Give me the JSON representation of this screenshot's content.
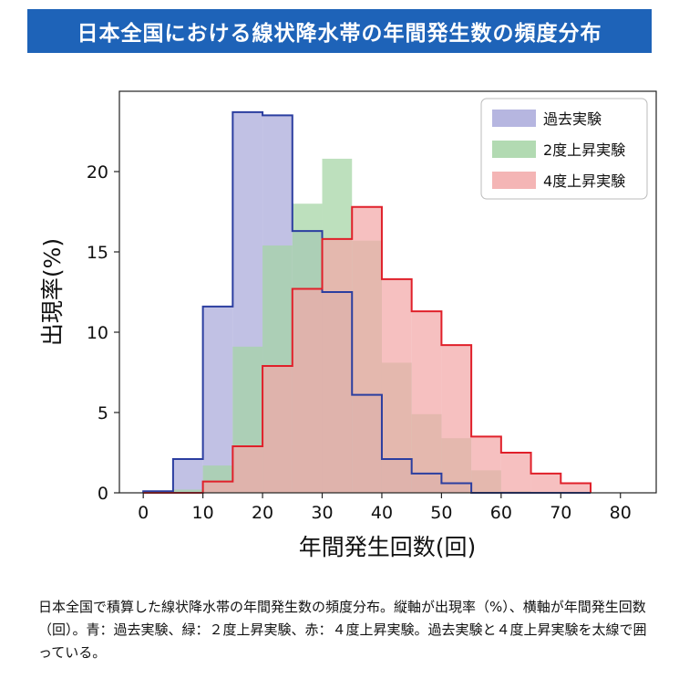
{
  "header": {
    "title": "日本全国における線状降水帯の年間発生数の頻度分布"
  },
  "caption": {
    "text": "日本全国で積算した線状降水帯の年間発生数の頻度分布。縦軸が出現率（%）、横軸が年間発生回数（回）。青：過去実験、緑：２度上昇実験、赤：４度上昇実験。過去実験と４度上昇実験を太線で囲っている。"
  },
  "chart_data": {
    "type": "histogram",
    "xlabel": "年間発生回数(回)",
    "ylabel": "出現率(%)",
    "xlim": [
      -4,
      86
    ],
    "ylim": [
      0,
      25
    ],
    "x_ticks": [
      "0",
      "10",
      "20",
      "30",
      "40",
      "50",
      "60",
      "70",
      "80"
    ],
    "y_ticks": [
      "0",
      "5",
      "10",
      "15",
      "20"
    ],
    "bin_edges": [
      0,
      5,
      10,
      15,
      20,
      25,
      30,
      35,
      40,
      45,
      50,
      55,
      60,
      65,
      70,
      75
    ],
    "legend_position": "top-right",
    "series": [
      {
        "name": "過去実験",
        "fill": "#a9a9da",
        "outline": "#2b3ea0",
        "values": [
          0.1,
          2.1,
          11.6,
          23.7,
          23.5,
          16.3,
          12.5,
          6.1,
          2.1,
          1.2,
          0.6,
          0.0,
          0.0,
          0.0,
          0.0
        ]
      },
      {
        "name": "2度上昇実験",
        "fill": "#a4d4a4",
        "outline": "none",
        "values": [
          0.0,
          0.2,
          1.7,
          9.1,
          15.4,
          18.0,
          20.8,
          15.7,
          8.1,
          4.9,
          3.4,
          1.4,
          0.1,
          0.0,
          0.0
        ]
      },
      {
        "name": "4度上昇実験",
        "fill": "#f2a8a8",
        "outline": "#e0202a",
        "values": [
          0.0,
          0.0,
          0.7,
          2.9,
          7.9,
          12.7,
          15.8,
          17.8,
          13.3,
          11.3,
          9.2,
          3.5,
          2.5,
          1.2,
          0.6
        ]
      }
    ]
  }
}
